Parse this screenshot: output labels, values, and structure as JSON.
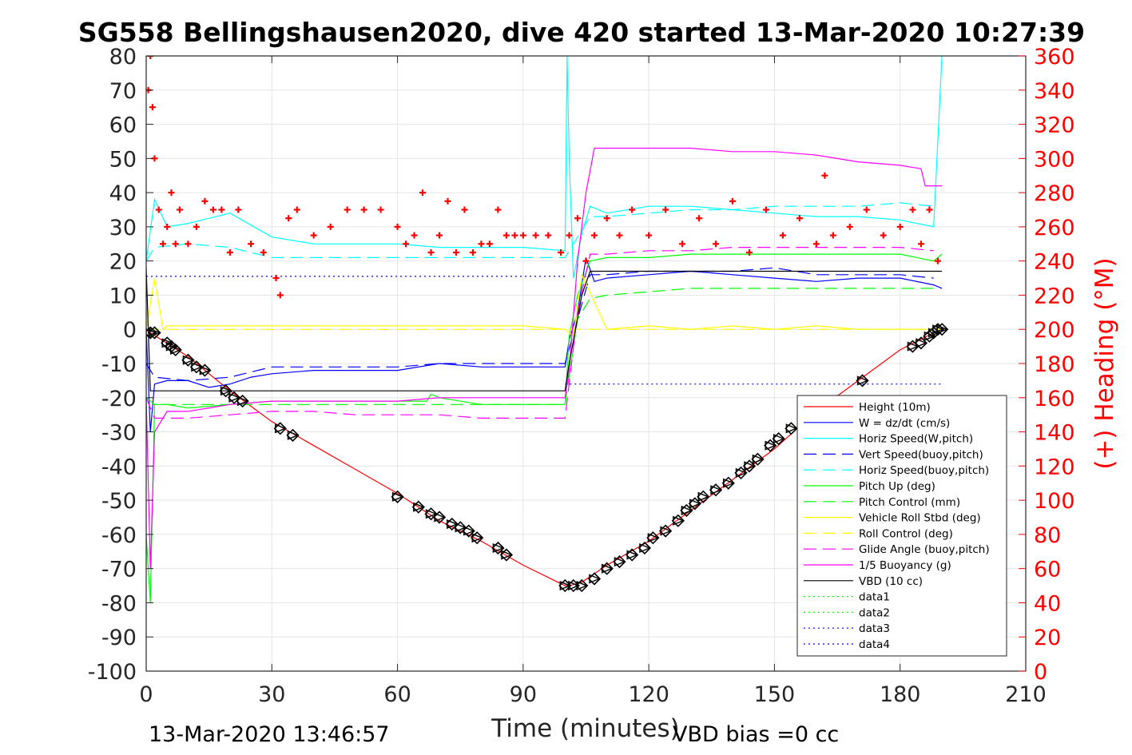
{
  "chart_data": {
    "type": "line",
    "title": "SG558 Bellingshausen2020, dive 420 started 13-Mar-2020 10:27:39",
    "xlabel": "Time (minutes)",
    "ylabel": "",
    "y2label": "(+) Heading (°M)",
    "xlim": [
      0,
      210
    ],
    "ylim": [
      -100,
      80
    ],
    "y2lim": [
      0,
      360
    ],
    "xticks": [
      "0",
      "30",
      "60",
      "90",
      "120",
      "150",
      "180",
      "210"
    ],
    "yticks": [
      "80",
      "70",
      "60",
      "50",
      "40",
      "30",
      "20",
      "10",
      "0",
      "-10",
      "-20",
      "-30",
      "-40",
      "-50",
      "-60",
      "-70",
      "-80",
      "-90",
      "-100"
    ],
    "y2ticks": [
      "360",
      "340",
      "320",
      "300",
      "280",
      "260",
      "240",
      "220",
      "200",
      "180",
      "160",
      "140",
      "120",
      "100",
      "80",
      "60",
      "40",
      "20",
      "0"
    ],
    "grid": true,
    "legend_position": "bottom-right",
    "footer_left": "13-Mar-2020 13:46:57",
    "footer_right": "VBD bias =0 cc",
    "colors": {
      "height": "#ff0000",
      "w": "#0000ff",
      "horiz": "#00ffff",
      "pitch": "#00ff00",
      "roll": "#ffff00",
      "glide": "#ff00ff",
      "vbd": "#000000",
      "heading": "#ff0000",
      "axis": "#262626",
      "grid": "#e6e6e6"
    },
    "series": [
      {
        "name": "Height (10m)",
        "color": "#ff0000",
        "style": "solid",
        "x": [
          0,
          1,
          10,
          20,
          30,
          40,
          50,
          60,
          70,
          80,
          90,
          100,
          101,
          104,
          110,
          120,
          130,
          140,
          150,
          160,
          170,
          180,
          188,
          190
        ],
        "y": [
          0,
          -1,
          -8,
          -18,
          -27,
          -34,
          -41,
          -48,
          -56,
          -62,
          -69,
          -75,
          -75,
          -74,
          -69,
          -62,
          -53,
          -44,
          -35,
          -24,
          -15,
          -6,
          -1,
          0
        ]
      },
      {
        "name": "W = dz/dt (cm/s)",
        "color": "#0000ff",
        "style": "solid",
        "x": [
          0,
          1,
          2,
          5,
          10,
          15,
          20,
          25,
          30,
          40,
          50,
          60,
          70,
          80,
          90,
          100,
          101,
          103,
          105,
          107,
          110,
          120,
          130,
          140,
          150,
          160,
          170,
          180,
          188,
          190
        ],
        "y": [
          0,
          -30,
          -16,
          -15,
          -15,
          -17,
          -16,
          -14,
          -13,
          -12,
          -12,
          -12,
          -10,
          -11,
          -11,
          -11,
          -3,
          5,
          21,
          14,
          15,
          16,
          17,
          16,
          15,
          14,
          15,
          15,
          13,
          12
        ]
      },
      {
        "name": "Horiz Speed(W,pitch)",
        "color": "#00ffff",
        "style": "solid",
        "x": [
          0,
          2,
          5,
          10,
          20,
          30,
          40,
          50,
          60,
          70,
          80,
          90,
          100,
          100.5,
          101,
          102,
          104,
          106,
          110,
          120,
          130,
          140,
          150,
          160,
          170,
          180,
          188,
          190
        ],
        "y": [
          20,
          38,
          30,
          31,
          34,
          27,
          25,
          25,
          25,
          24,
          24,
          24,
          23,
          80,
          50,
          15,
          28,
          36,
          34,
          36,
          36,
          35,
          34,
          33,
          33,
          32,
          30,
          80
        ]
      },
      {
        "name": "Vert Speed(buoy,pitch)",
        "color": "#0000ff",
        "style": "dash",
        "x": [
          0,
          2,
          10,
          20,
          30,
          40,
          50,
          60,
          70,
          80,
          90,
          100,
          103,
          106,
          110,
          120,
          130,
          140,
          150,
          160,
          170,
          180,
          188
        ],
        "y": [
          -10,
          -14,
          -15,
          -14,
          -11,
          -11,
          -11,
          -11,
          -10,
          -10,
          -10,
          -10,
          3,
          16,
          16,
          17,
          17,
          17,
          18,
          16,
          16,
          16,
          15
        ]
      },
      {
        "name": "Horiz Speed(buoy,pitch)",
        "color": "#00ffff",
        "style": "dash",
        "x": [
          0,
          2,
          10,
          20,
          30,
          40,
          50,
          60,
          70,
          80,
          90,
          100,
          103,
          106,
          110,
          120,
          130,
          140,
          150,
          160,
          170,
          180,
          188
        ],
        "y": [
          20,
          24,
          25,
          24,
          21,
          21,
          21,
          21,
          21,
          21,
          21,
          21,
          27,
          33,
          33,
          34,
          35,
          35,
          36,
          36,
          36,
          37,
          36
        ]
      },
      {
        "name": "Pitch Up (deg)",
        "color": "#00ff00",
        "style": "solid",
        "x": [
          0,
          1,
          2,
          5,
          10,
          20,
          30,
          40,
          50,
          60,
          67,
          68,
          70,
          80,
          90,
          100,
          101,
          103,
          106,
          110,
          120,
          130,
          140,
          150,
          160,
          170,
          180,
          188,
          190
        ],
        "y": [
          -60,
          -80,
          -22,
          -22,
          -23,
          -22,
          -21,
          -21,
          -21,
          -21,
          -21,
          -19,
          -20,
          -22,
          -22,
          -22,
          -2,
          10,
          20,
          21,
          21,
          22,
          22,
          22,
          22,
          22,
          22,
          20,
          22
        ]
      },
      {
        "name": "Pitch Control (mm)",
        "color": "#00ff00",
        "style": "dash",
        "x": [
          0,
          2,
          10,
          20,
          30,
          40,
          50,
          60,
          70,
          80,
          90,
          100,
          103,
          106,
          110,
          120,
          130,
          140,
          150,
          160,
          170,
          180,
          188
        ],
        "y": [
          -20,
          -22,
          -22,
          -22,
          -22,
          -22,
          -22,
          -22,
          -22,
          -22,
          -22,
          -22,
          3,
          9,
          10,
          11,
          12,
          12,
          12,
          12,
          12,
          12,
          12
        ]
      },
      {
        "name": "Vehicle Roll Stbd (deg)",
        "color": "#ffff00",
        "style": "solid",
        "x": [
          0,
          2,
          4,
          5,
          10,
          20,
          30,
          40,
          50,
          60,
          70,
          80,
          90,
          100,
          102,
          104,
          110,
          120,
          130,
          140,
          150,
          160,
          170,
          180,
          188,
          190
        ],
        "y": [
          0,
          15,
          0,
          1,
          1,
          1,
          1,
          1,
          1,
          1,
          1,
          1,
          1,
          0,
          -2,
          16,
          0,
          1,
          0,
          1,
          0,
          1,
          0,
          0,
          0,
          0
        ]
      },
      {
        "name": "Roll Control (deg)",
        "color": "#ffff00",
        "style": "dash",
        "x": [
          0,
          2,
          10,
          20,
          30,
          40,
          50,
          60,
          70,
          80,
          90,
          100,
          103,
          106,
          110,
          120,
          130,
          140,
          150,
          160,
          170,
          180,
          188
        ],
        "y": [
          0,
          0,
          0,
          0,
          0,
          0,
          0,
          0,
          0,
          0,
          0,
          0,
          0,
          0,
          0,
          0,
          0,
          0,
          0,
          0,
          0,
          0,
          0
        ]
      },
      {
        "name": "Glide Angle (buoy,pitch)",
        "color": "#ff00ff",
        "style": "dash",
        "x": [
          0,
          2,
          10,
          20,
          30,
          40,
          50,
          60,
          70,
          80,
          90,
          100,
          103,
          106,
          110,
          120,
          130,
          140,
          150,
          160,
          170,
          180,
          188
        ],
        "y": [
          -20,
          -26,
          -26,
          -25,
          -24,
          -24,
          -25,
          -25,
          -25,
          -26,
          -26,
          -26,
          5,
          22,
          22,
          23,
          23,
          24,
          24,
          24,
          24,
          24,
          23
        ]
      },
      {
        "name": "1/5 Buoyancy (g)",
        "color": "#ff00ff",
        "style": "solid",
        "x": [
          0,
          1,
          2,
          5,
          10,
          20,
          30,
          40,
          50,
          60,
          70,
          80,
          90,
          100,
          101,
          103,
          105,
          107,
          110,
          120,
          130,
          140,
          150,
          160,
          170,
          180,
          185,
          186,
          190
        ],
        "y": [
          -20,
          -70,
          -30,
          -24,
          -24,
          -22,
          -21,
          -21,
          -21,
          -21,
          -20,
          -20,
          -20,
          -20,
          -12,
          20,
          40,
          53,
          53,
          53,
          53,
          52,
          52,
          51,
          49,
          48,
          47,
          42,
          42
        ]
      },
      {
        "name": "VBD (10 cc)",
        "color": "#000000",
        "style": "solid",
        "x": [
          0,
          1,
          3,
          100,
          101,
          104,
          106,
          190
        ],
        "y": [
          18,
          -18,
          -18,
          -18,
          -10,
          10,
          17,
          17
        ]
      },
      {
        "name": "data1",
        "color": "#00ff00",
        "style": "dot",
        "x": [],
        "y": []
      },
      {
        "name": "data2",
        "color": "#00ff00",
        "style": "dot",
        "x": [],
        "y": []
      },
      {
        "name": "data3",
        "color": "#0000ff",
        "style": "dot",
        "x": [
          0,
          100
        ],
        "y": [
          15.5,
          15.5
        ]
      },
      {
        "name": "data4",
        "color": "#0000ff",
        "style": "dot",
        "x": [
          100,
          190
        ],
        "y": [
          -16,
          -16
        ]
      }
    ],
    "heading": {
      "name": "Heading (°M)",
      "axis": "right",
      "color": "#ff0000",
      "marker": "+",
      "x": [
        0.5,
        1,
        1.5,
        2,
        3,
        4,
        5,
        6,
        7,
        8,
        10,
        12,
        14,
        16,
        18,
        20,
        22,
        25,
        28,
        31,
        32,
        34,
        36,
        40,
        44,
        48,
        52,
        56,
        60,
        62,
        64,
        66,
        68,
        70,
        72,
        74,
        76,
        78,
        80,
        82,
        84,
        86,
        88,
        90,
        93,
        96,
        99,
        101,
        103,
        105,
        107,
        110,
        113,
        116,
        120,
        124,
        128,
        132,
        136,
        140,
        144,
        148,
        152,
        156,
        160,
        162,
        164,
        168,
        172,
        176,
        180,
        183,
        185,
        187,
        189
      ],
      "y": [
        340,
        360,
        330,
        300,
        270,
        250,
        260,
        280,
        250,
        270,
        250,
        260,
        275,
        270,
        270,
        245,
        270,
        250,
        245,
        230,
        220,
        265,
        270,
        255,
        260,
        270,
        270,
        270,
        260,
        250,
        255,
        280,
        245,
        255,
        275,
        245,
        270,
        245,
        250,
        250,
        270,
        255,
        255,
        255,
        255,
        255,
        245,
        255,
        265,
        240,
        255,
        265,
        255,
        270,
        255,
        270,
        250,
        265,
        250,
        275,
        245,
        270,
        255,
        265,
        250,
        290,
        255,
        260,
        270,
        255,
        260,
        270,
        250,
        270,
        240
      ]
    },
    "vbd_markers": {
      "name": "Height markers",
      "color": "#000000",
      "marker": "diamond",
      "x": [
        1,
        2,
        5,
        6,
        7,
        10,
        12,
        14,
        19,
        21,
        23,
        32,
        35,
        60,
        65,
        68,
        70,
        73,
        75,
        77,
        79,
        84,
        86,
        100,
        102,
        104,
        107,
        110,
        113,
        116,
        119,
        121,
        124,
        127,
        129,
        131,
        133,
        136,
        139,
        142,
        144,
        146,
        149,
        151,
        154,
        165,
        171,
        183,
        185,
        187,
        188,
        189,
        190
      ],
      "y": [
        -1,
        -1,
        -4,
        -5,
        -6,
        -9,
        -11,
        -12,
        -18,
        -20,
        -21,
        -29,
        -31,
        -49,
        -52,
        -54,
        -55,
        -57,
        -58,
        -59,
        -61,
        -64,
        -66,
        -75,
        -75,
        -75,
        -73,
        -70,
        -68,
        -66,
        -64,
        -61,
        -59,
        -56,
        -53,
        -51,
        -49,
        -47,
        -45,
        -42,
        -40,
        -38,
        -34,
        -32,
        -29,
        -21,
        -15,
        -5,
        -4,
        -2,
        -1,
        0,
        0
      ]
    }
  }
}
